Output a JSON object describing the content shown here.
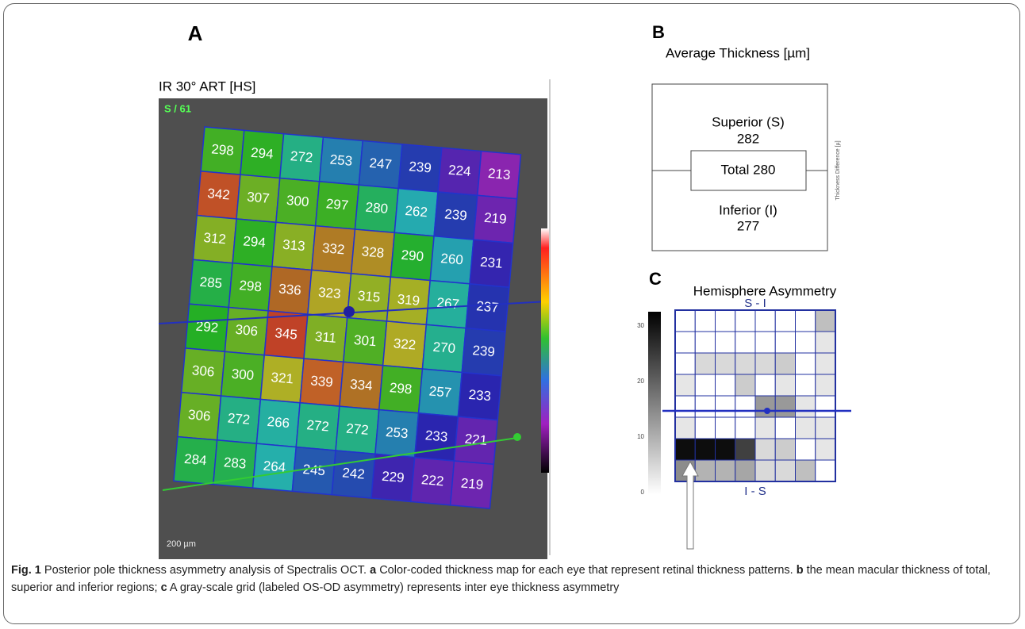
{
  "panel_a": {
    "label": "A",
    "image_title": "IR 30° ART [HS]",
    "scan_count": "S / 61",
    "scale": "200 µm",
    "grid": [
      [
        298,
        294,
        272,
        253,
        247,
        239,
        224,
        213
      ],
      [
        342,
        307,
        300,
        297,
        280,
        262,
        239,
        219
      ],
      [
        312,
        294,
        313,
        332,
        328,
        290,
        260,
        231
      ],
      [
        285,
        298,
        336,
        323,
        315,
        319,
        267,
        237
      ],
      [
        292,
        306,
        345,
        311,
        301,
        322,
        270,
        239
      ],
      [
        306,
        300,
        321,
        339,
        334,
        298,
        257,
        233
      ],
      [
        306,
        272,
        266,
        272,
        272,
        253,
        233,
        221
      ],
      [
        284,
        283,
        264,
        245,
        242,
        229,
        222,
        219
      ]
    ]
  },
  "panel_b": {
    "label": "B",
    "title": "Average Thickness [µm]",
    "superior_label": "Superior (S)",
    "superior_value": 282,
    "total": "Total 280",
    "inferior_label": "Inferior (I)",
    "inferior_value": 277,
    "side_label": "Thickness Difference [µ]"
  },
  "panel_c": {
    "label": "C",
    "title": "Hemisphere Asymmetry",
    "top_label": "S - I",
    "bottom_label": "I - S",
    "scale_ticks": [
      "30",
      "20",
      "10",
      "0"
    ]
  },
  "caption": {
    "label": "Fig. 1",
    "intro": "Posterior pole thickness asymmetry analysis of Spectralis OCT.",
    "a_letter": "a",
    "a_text": "Color-coded thickness map for each eye that represent retinal thickness patterns.",
    "b_letter": "b",
    "b_text": "the mean macular thickness of total, superior and inferior regions;",
    "c_letter": "c",
    "c_text": "A gray-scale grid (labeled OS-OD asymmetry) represents inter eye thickness asymmetry"
  }
}
